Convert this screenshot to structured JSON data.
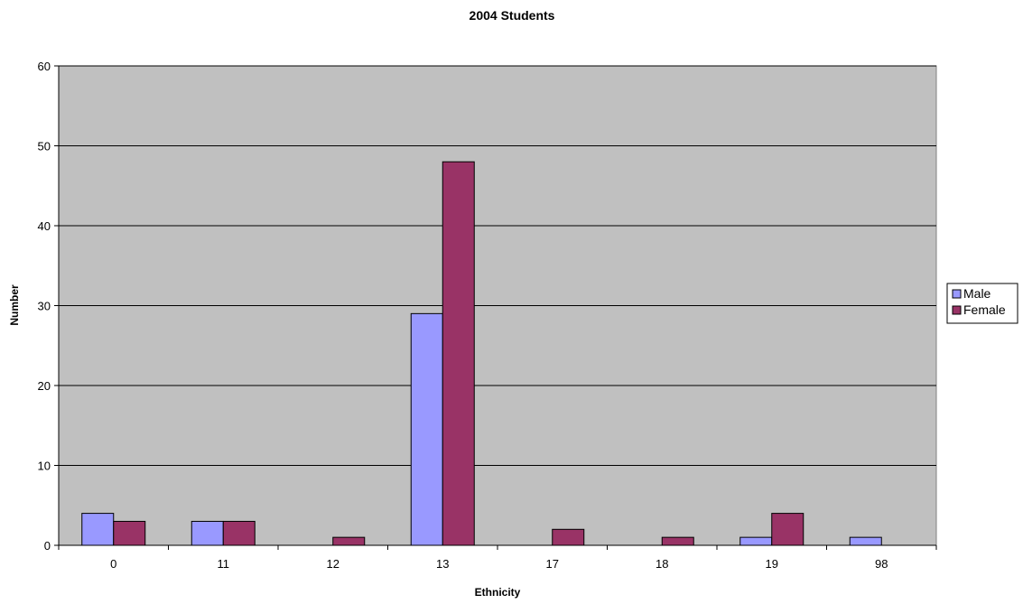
{
  "chart_data": {
    "type": "bar",
    "title": "2004 Students",
    "xlabel": "Ethnicity",
    "ylabel": "Number",
    "categories": [
      "0",
      "11",
      "12",
      "13",
      "17",
      "18",
      "19",
      "98"
    ],
    "series": [
      {
        "name": "Male",
        "values": [
          4,
          3,
          0,
          29,
          0,
          0,
          1,
          1
        ],
        "color": "#9999ff"
      },
      {
        "name": "Female",
        "values": [
          3,
          3,
          1,
          48,
          2,
          1,
          4,
          0
        ],
        "color": "#993366"
      }
    ],
    "ylim": [
      0,
      60
    ],
    "yticks": [
      0,
      10,
      20,
      30,
      40,
      50,
      60
    ],
    "grid": true,
    "legend_position": "right",
    "plot_background": "#c0c0c0"
  }
}
